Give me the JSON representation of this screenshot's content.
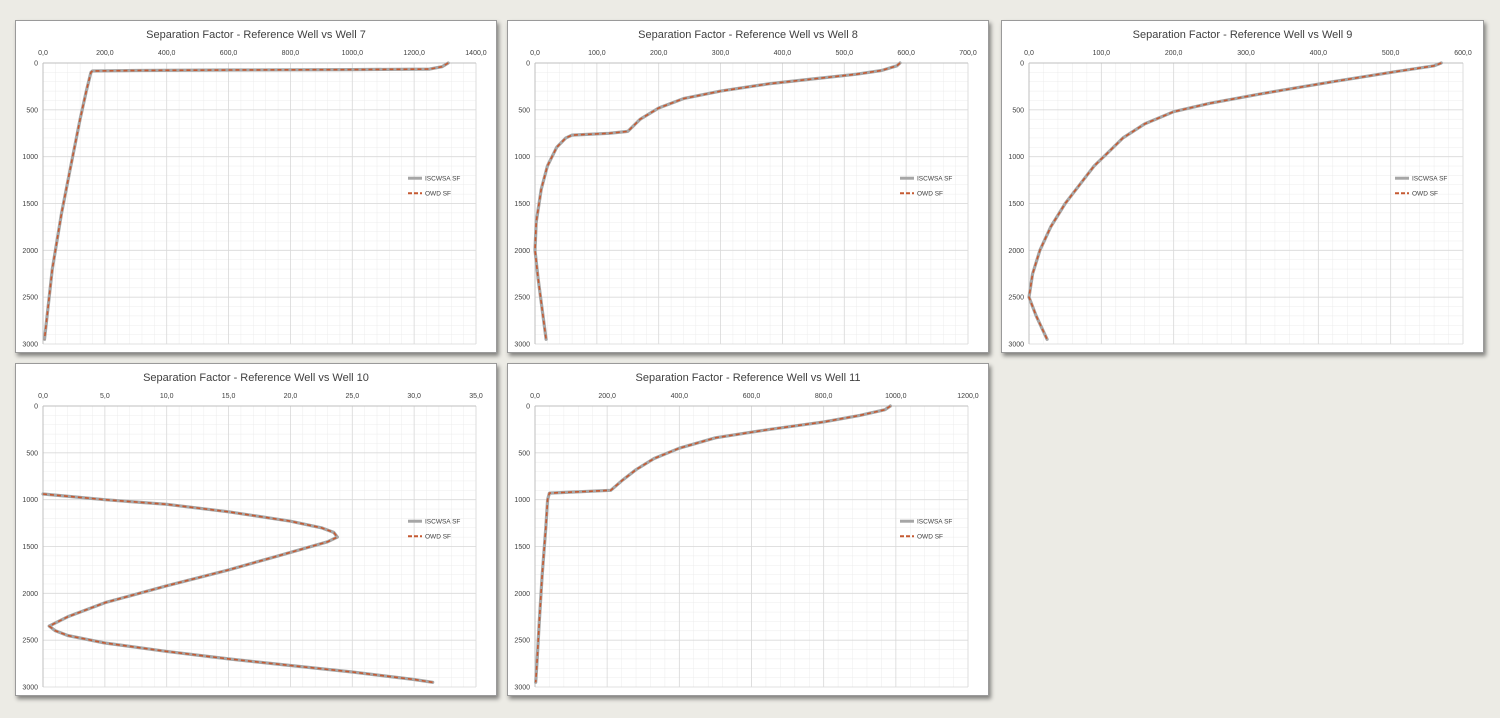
{
  "legend": {
    "series1": "ISCWSA SF",
    "series2": "OWD SF"
  },
  "colors": {
    "series1": "#a6a6a6",
    "series2": "#c55a32",
    "grid": "#d9d9d9",
    "axis": "#bfbfbf"
  },
  "chart_data": [
    {
      "type": "line",
      "title": "Separation Factor - Reference Well vs Well 7",
      "x_ticks": [
        "0,0",
        "200,0",
        "400,0",
        "600,0",
        "800,0",
        "1000,0",
        "1200,0",
        "1400,0"
      ],
      "y_ticks": [
        "0",
        "500",
        "1000",
        "1500",
        "2000",
        "2500",
        "3000"
      ],
      "xlim": [
        0,
        1400
      ],
      "ylim": [
        0,
        3000
      ],
      "y_inverted": true,
      "x_axis_position": "top",
      "grid": true,
      "legend_position": "right",
      "series": [
        {
          "name": "ISCWSA SF",
          "x": [
            1310,
            1290,
            1250,
            1000,
            600,
            300,
            160,
            155,
            140,
            120,
            90,
            60,
            30,
            5
          ],
          "y": [
            0,
            40,
            65,
            70,
            75,
            80,
            85,
            100,
            300,
            600,
            1100,
            1600,
            2200,
            2950
          ]
        },
        {
          "name": "OWD SF",
          "x": [
            1310,
            1290,
            1250,
            1000,
            600,
            300,
            160,
            155,
            140,
            120,
            90,
            60,
            30,
            5
          ],
          "y": [
            0,
            40,
            65,
            70,
            75,
            80,
            85,
            100,
            300,
            600,
            1100,
            1600,
            2200,
            2950
          ]
        }
      ]
    },
    {
      "type": "line",
      "title": "Separation Factor - Reference Well vs Well 8",
      "x_ticks": [
        "0,0",
        "100,0",
        "200,0",
        "300,0",
        "400,0",
        "500,0",
        "600,0",
        "700,0"
      ],
      "y_ticks": [
        "0",
        "500",
        "1000",
        "1500",
        "2000",
        "2500",
        "3000"
      ],
      "xlim": [
        0,
        700
      ],
      "ylim": [
        0,
        3000
      ],
      "y_inverted": true,
      "x_axis_position": "top",
      "grid": true,
      "legend_position": "right",
      "series": [
        {
          "name": "ISCWSA SF",
          "x": [
            590,
            585,
            560,
            520,
            450,
            380,
            300,
            240,
            200,
            170,
            150,
            120,
            60,
            50,
            35,
            20,
            10,
            2,
            0,
            5,
            12,
            18
          ],
          "y": [
            0,
            30,
            80,
            120,
            170,
            220,
            300,
            380,
            480,
            600,
            730,
            750,
            770,
            800,
            900,
            1100,
            1350,
            1700,
            2000,
            2300,
            2650,
            2950
          ]
        },
        {
          "name": "OWD SF",
          "x": [
            590,
            585,
            560,
            520,
            450,
            380,
            300,
            240,
            200,
            170,
            150,
            120,
            60,
            50,
            35,
            20,
            10,
            2,
            0,
            5,
            12,
            18
          ],
          "y": [
            0,
            30,
            80,
            120,
            170,
            220,
            300,
            380,
            480,
            600,
            730,
            750,
            770,
            800,
            900,
            1100,
            1350,
            1700,
            2000,
            2300,
            2650,
            2950
          ]
        }
      ]
    },
    {
      "type": "line",
      "title": "Separation Factor - Reference Well vs Well 9",
      "x_ticks": [
        "0,0",
        "100,0",
        "200,0",
        "300,0",
        "400,0",
        "500,0",
        "600,0"
      ],
      "y_ticks": [
        "0",
        "500",
        "1000",
        "1500",
        "2000",
        "2500",
        "3000"
      ],
      "xlim": [
        0,
        600
      ],
      "ylim": [
        0,
        3000
      ],
      "y_inverted": true,
      "x_axis_position": "top",
      "grid": true,
      "legend_position": "right",
      "series": [
        {
          "name": "ISCWSA SF",
          "x": [
            570,
            560,
            500,
            420,
            320,
            250,
            200,
            160,
            130,
            110,
            90,
            70,
            50,
            30,
            15,
            5,
            0,
            10,
            25
          ],
          "y": [
            0,
            30,
            100,
            200,
            330,
            430,
            520,
            650,
            800,
            950,
            1100,
            1300,
            1500,
            1750,
            2000,
            2250,
            2500,
            2700,
            2950
          ]
        },
        {
          "name": "OWD SF",
          "x": [
            570,
            560,
            500,
            420,
            320,
            250,
            200,
            160,
            130,
            110,
            90,
            70,
            50,
            30,
            15,
            5,
            0,
            10,
            25
          ],
          "y": [
            0,
            30,
            100,
            200,
            330,
            430,
            520,
            650,
            800,
            950,
            1100,
            1300,
            1500,
            1750,
            2000,
            2250,
            2500,
            2700,
            2950
          ]
        }
      ]
    },
    {
      "type": "line",
      "title": "Separation Factor - Reference Well vs Well 10",
      "x_ticks": [
        "0,0",
        "5,0",
        "10,0",
        "15,0",
        "20,0",
        "25,0",
        "30,0",
        "35,0"
      ],
      "y_ticks": [
        "0",
        "500",
        "1000",
        "1500",
        "2000",
        "2500",
        "3000"
      ],
      "xlim": [
        0,
        35
      ],
      "ylim": [
        0,
        3000
      ],
      "y_inverted": true,
      "x_axis_position": "top",
      "grid": true,
      "legend_position": "right",
      "series": [
        {
          "name": "ISCWSA SF",
          "x": [
            0,
            5,
            10,
            15,
            20,
            22.5,
            23.5,
            23.8,
            23,
            19,
            15,
            10,
            5,
            2,
            0.5,
            1,
            2,
            5,
            10,
            15,
            20,
            25,
            30,
            31.5
          ],
          "y": [
            940,
            1000,
            1050,
            1130,
            1230,
            1300,
            1350,
            1400,
            1450,
            1600,
            1750,
            1920,
            2100,
            2250,
            2350,
            2400,
            2450,
            2530,
            2620,
            2700,
            2770,
            2840,
            2920,
            2950
          ]
        },
        {
          "name": "OWD SF",
          "x": [
            0,
            5,
            10,
            15,
            20,
            22.5,
            23.5,
            23.8,
            23,
            19,
            15,
            10,
            5,
            2,
            0.5,
            1,
            2,
            5,
            10,
            15,
            20,
            25,
            30,
            31.5
          ],
          "y": [
            940,
            1000,
            1050,
            1130,
            1230,
            1300,
            1350,
            1400,
            1450,
            1600,
            1750,
            1920,
            2100,
            2250,
            2350,
            2400,
            2450,
            2530,
            2620,
            2700,
            2770,
            2840,
            2920,
            2950
          ]
        }
      ]
    },
    {
      "type": "line",
      "title": "Separation Factor - Reference Well vs Well 11",
      "x_ticks": [
        "0,0",
        "200,0",
        "400,0",
        "600,0",
        "800,0",
        "1000,0",
        "1200,0"
      ],
      "y_ticks": [
        "0",
        "500",
        "1000",
        "1500",
        "2000",
        "2500",
        "3000"
      ],
      "xlim": [
        0,
        1200
      ],
      "ylim": [
        0,
        3000
      ],
      "y_inverted": true,
      "x_axis_position": "top",
      "grid": true,
      "legend_position": "right",
      "series": [
        {
          "name": "ISCWSA SF",
          "x": [
            985,
            970,
            900,
            800,
            650,
            500,
            400,
            330,
            280,
            240,
            210,
            40,
            35,
            30,
            20,
            12,
            6,
            2
          ],
          "y": [
            0,
            40,
            100,
            170,
            250,
            340,
            450,
            560,
            680,
            800,
            900,
            930,
            1000,
            1300,
            1800,
            2300,
            2700,
            2950
          ]
        },
        {
          "name": "OWD SF",
          "x": [
            985,
            970,
            900,
            800,
            650,
            500,
            400,
            330,
            280,
            240,
            210,
            40,
            35,
            30,
            20,
            12,
            6,
            2
          ],
          "y": [
            0,
            40,
            100,
            170,
            250,
            340,
            450,
            560,
            680,
            800,
            900,
            930,
            1000,
            1300,
            1800,
            2300,
            2700,
            2950
          ]
        }
      ]
    }
  ]
}
